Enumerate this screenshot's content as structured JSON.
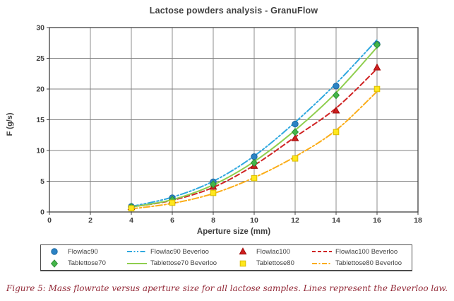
{
  "chart_data": {
    "type": "scatter",
    "title": "Lactose powders analysis - GranuFlow",
    "xlabel": "Aperture size (mm)",
    "ylabel": "F (g/s)",
    "xlim": [
      0,
      18
    ],
    "ylim": [
      0,
      30
    ],
    "xticks": [
      0,
      2,
      4,
      6,
      8,
      10,
      12,
      14,
      16,
      18
    ],
    "yticks": [
      0,
      5,
      10,
      15,
      20,
      25,
      30
    ],
    "grid": true,
    "legend_position": "bottom",
    "x": [
      4,
      6,
      8,
      10,
      12,
      14,
      16
    ],
    "series": [
      {
        "name": "Flowlac90",
        "kind": "scatter",
        "marker": "circle",
        "color": "#2b83c5",
        "edge": "#1c68a0",
        "values": [
          0.9,
          2.3,
          4.9,
          9.0,
          14.3,
          20.5,
          27.3
        ]
      },
      {
        "name": "Flowlac90 Beverloo",
        "kind": "line",
        "style": "dashdotdot",
        "color": "#2fa8df",
        "values": [
          0.9,
          2.4,
          5.0,
          9.1,
          14.6,
          20.9,
          28.0
        ]
      },
      {
        "name": "Flowlac100",
        "kind": "scatter",
        "marker": "triangle",
        "color": "#d02020",
        "edge": "#9e0b0b",
        "values": [
          0.8,
          1.9,
          4.1,
          7.5,
          12.0,
          16.5,
          23.5
        ]
      },
      {
        "name": "Flowlac100 Beverloo",
        "kind": "line",
        "style": "dashed",
        "color": "#d02424",
        "values": [
          0.8,
          1.9,
          4.0,
          7.6,
          12.2,
          16.9,
          23.3
        ]
      },
      {
        "name": "Tablettose70",
        "kind": "scatter",
        "marker": "diamond",
        "color": "#43b649",
        "edge": "#2f9136",
        "values": [
          0.8,
          2.0,
          4.5,
          8.0,
          13.0,
          19.0,
          27.2
        ]
      },
      {
        "name": "Tablettose70 Beverloo",
        "kind": "line",
        "style": "solid",
        "color": "#8fce4e",
        "values": [
          0.8,
          2.0,
          4.4,
          8.2,
          13.3,
          19.4,
          26.8
        ]
      },
      {
        "name": "Tablettose80",
        "kind": "scatter",
        "marker": "square",
        "color": "#ffe71c",
        "edge": "#d9bc00",
        "values": [
          0.6,
          1.5,
          3.1,
          5.5,
          8.7,
          13.0,
          20.0
        ]
      },
      {
        "name": "Tablettose80 Beverloo",
        "kind": "line",
        "style": "dashdot",
        "color": "#fbad18",
        "values": [
          0.5,
          1.4,
          3.0,
          5.6,
          9.0,
          13.3,
          19.6
        ]
      }
    ]
  },
  "caption": "Figure 5: Mass flowrate versus aperture size for all lactose samples. Lines represent the Beverloo law."
}
